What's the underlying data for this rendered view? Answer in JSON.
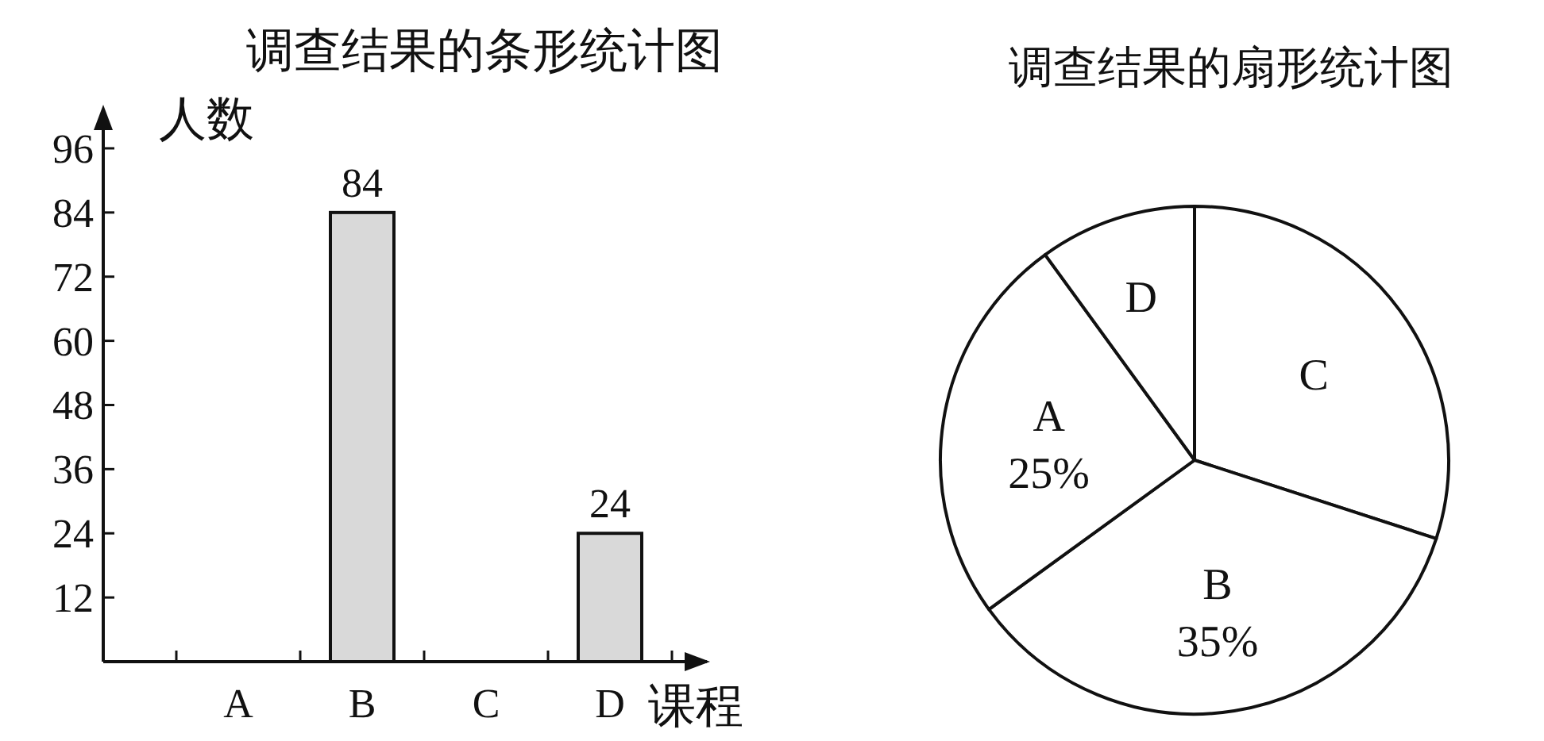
{
  "chart_data": [
    {
      "type": "bar",
      "title": "调查结果的条形统计图",
      "ylabel": "人数",
      "xlabel": "课程",
      "categories": [
        "A",
        "B",
        "C",
        "D"
      ],
      "values": [
        null,
        84,
        null,
        24
      ],
      "value_labels": [
        null,
        "84",
        null,
        "24"
      ],
      "color": "#d9d9d9",
      "ylim": [
        0,
        100
      ],
      "yticks": [
        12,
        24,
        36,
        48,
        60,
        72,
        84,
        96
      ]
    },
    {
      "type": "pie",
      "title": "调查结果的扇形统计图",
      "categories": [
        "C",
        "B",
        "A",
        "D"
      ],
      "values": [
        30,
        35,
        25,
        10
      ],
      "value_labels": [
        null,
        "35%",
        "25%",
        null
      ],
      "colors": [
        "#ffffff",
        "#ffffff",
        "#ffffff",
        "#ffffff"
      ]
    }
  ]
}
